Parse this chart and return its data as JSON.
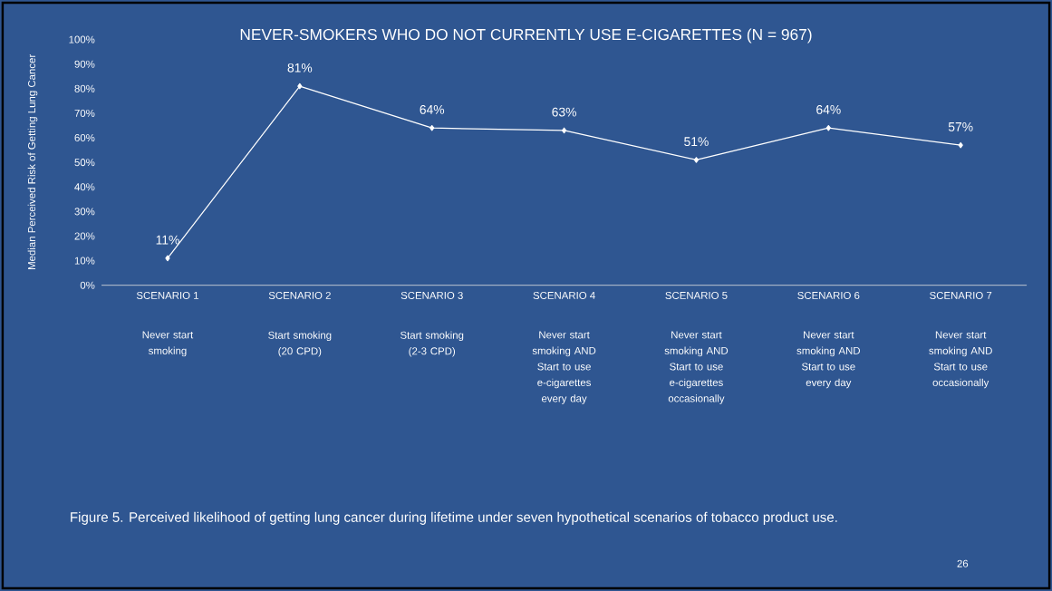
{
  "chart_data": {
    "type": "line",
    "title": "NEVER-SMOKERS WHO DO NOT CURRENTLY USE E-CIGARETTES (N = 967)",
    "ylabel": "Median Perceived Risk of Getting Lung Cancer",
    "categories": [
      "SCENARIO 1",
      "SCENARIO 2",
      "SCENARIO 3",
      "SCENARIO 4",
      "SCENARIO 5",
      "SCENARIO 6",
      "SCENARIO 7"
    ],
    "series": [
      {
        "color": "#ffffff",
        "values": [
          11,
          81,
          64,
          63,
          51,
          64,
          57
        ]
      }
    ],
    "value_labels": [
      "11%",
      "81%",
      "64%",
      "63%",
      "51%",
      "64%",
      "57%"
    ],
    "ylim": [
      0,
      100
    ],
    "yticks": [
      {
        "value": 0,
        "label": "0%"
      },
      {
        "value": 10,
        "label": "10%"
      },
      {
        "value": 20,
        "label": "20%"
      },
      {
        "value": 30,
        "label": "30%"
      },
      {
        "value": 40,
        "label": "40%"
      },
      {
        "value": 50,
        "label": "50%"
      },
      {
        "value": 60,
        "label": "60%"
      },
      {
        "value": 70,
        "label": "70%"
      },
      {
        "value": 80,
        "label": "80%"
      },
      {
        "value": 90,
        "label": "90%"
      },
      {
        "value": 100,
        "label": "100%"
      }
    ],
    "marker": "diamond",
    "annotations": [
      "Never start smoking",
      "Start smoking (20 CPD)",
      "Start smoking (2-3 CPD)",
      "Never start smoking AND Start to use e-cigarettes every day",
      "Never start smoking AND Start to use e-cigarettes occasionally",
      "Never start smoking AND Start to use every day",
      "Never start smoking AND Start to use occasionally",
      "Figure 5. Perceived likelihood of getting lung cancer during lifetime under seven hypothetical scenarios of tobacco product use.",
      "26"
    ]
  }
}
